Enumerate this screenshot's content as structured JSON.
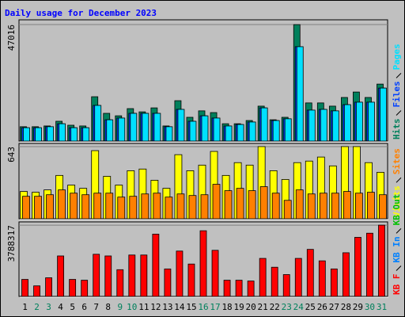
{
  "title": "Daily usage for December 2023",
  "chart_data": [
    {
      "type": "bar",
      "categories": [
        "1",
        "2",
        "3",
        "4",
        "5",
        "6",
        "7",
        "8",
        "9",
        "10",
        "11",
        "12",
        "13",
        "14",
        "15",
        "16",
        "17",
        "18",
        "19",
        "20",
        "21",
        "22",
        "23",
        "24",
        "25",
        "26",
        "27",
        "28",
        "29",
        "30",
        "31"
      ],
      "category_colors": [
        "#000000",
        "#00805c",
        "#00805c",
        "#000000",
        "#000000",
        "#000000",
        "#000000",
        "#000000",
        "#00805c",
        "#00805c",
        "#000000",
        "#000000",
        "#000000",
        "#000000",
        "#000000",
        "#00805c",
        "#00805c",
        "#000000",
        "#000000",
        "#000000",
        "#000000",
        "#000000",
        "#00805c",
        "#00805c",
        "#000000",
        "#000000",
        "#000000",
        "#000000",
        "#000000",
        "#00805c",
        "#00805c"
      ],
      "ylim": [
        0,
        48950
      ],
      "yticks": [
        47016
      ],
      "grid": true,
      "series": [
        {
          "name": "Hits",
          "color": "#00805c",
          "values": [
            5800,
            5800,
            6100,
            8000,
            6400,
            6100,
            17900,
            11200,
            10200,
            13100,
            11800,
            13400,
            6100,
            16300,
            9600,
            12200,
            11500,
            7000,
            7000,
            8300,
            14100,
            8600,
            9600,
            47016,
            15400,
            15400,
            14100,
            17600,
            19800,
            17600,
            23000
          ]
        },
        {
          "name": "Files",
          "color": "#0040ff",
          "values": [
            5400,
            5400,
            5800,
            7000,
            5400,
            5400,
            14400,
            8600,
            9300,
            11200,
            11200,
            11200,
            5800,
            12800,
            8000,
            10200,
            9300,
            6100,
            6700,
            7700,
            13400,
            8300,
            9000,
            38100,
            12500,
            12800,
            12200,
            14700,
            15700,
            15700,
            21400
          ]
        },
        {
          "name": "Pages",
          "color": "#00e0ff",
          "values": [
            5400,
            5400,
            5800,
            7000,
            5400,
            5400,
            14400,
            8600,
            9300,
            11200,
            11200,
            11200,
            5800,
            12800,
            8000,
            10200,
            9300,
            6100,
            6700,
            7700,
            13400,
            8300,
            9000,
            38100,
            12500,
            12800,
            12200,
            14700,
            15700,
            15700,
            21400
          ]
        }
      ]
    },
    {
      "type": "bar",
      "ylim": [
        0,
        671
      ],
      "yticks": [
        643
      ],
      "grid": true,
      "series": [
        {
          "name": "Visits",
          "color": "#ffff00",
          "values": [
            243,
            236,
            257,
            386,
            300,
            271,
            607,
            378,
            300,
            428,
            443,
            343,
            271,
            571,
            428,
            478,
            600,
            386,
            500,
            478,
            643,
            428,
            350,
            500,
            514,
            550,
            471,
            643,
            643,
            500,
            414
          ]
        },
        {
          "name": "Sites",
          "color": "#ff8000",
          "values": [
            200,
            200,
            214,
            257,
            228,
            214,
            228,
            228,
            193,
            200,
            221,
            228,
            193,
            221,
            207,
            214,
            307,
            250,
            271,
            250,
            286,
            228,
            164,
            257,
            221,
            228,
            228,
            243,
            228,
            236,
            214
          ]
        }
      ]
    },
    {
      "type": "bar",
      "ylim": [
        0,
        3960000
      ],
      "yticks": [
        3788317
      ],
      "grid": true,
      "series": [
        {
          "name": "KB F",
          "color": "#ff0000",
          "values": [
            904000,
            560000,
            990000,
            2150000,
            904000,
            861000,
            2240000,
            2150000,
            1420000,
            2200000,
            2200000,
            3310000,
            1460000,
            2410000,
            1720000,
            3490000,
            2450000,
            861000,
            861000,
            818000,
            2020000,
            1550000,
            1160000,
            2020000,
            2500000,
            1890000,
            1460000,
            2320000,
            3140000,
            3360000,
            3788317
          ]
        }
      ],
      "legend": [
        {
          "name": "KB F",
          "color": "#ff0000"
        },
        {
          "name": "KB In",
          "color": "#0080ff"
        },
        {
          "name": "KB Out",
          "color": "#00c000"
        }
      ]
    }
  ]
}
